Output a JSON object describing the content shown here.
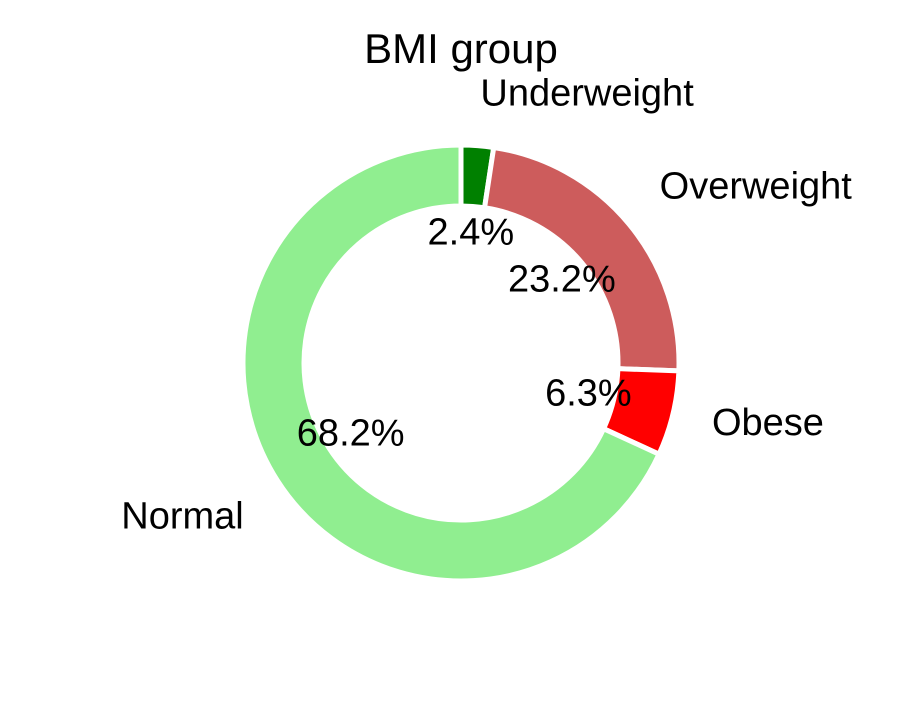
{
  "chart_data": {
    "type": "pie",
    "variant": "donut",
    "title": "BMI group",
    "slices": [
      {
        "label": "Underweight",
        "value": 2.4,
        "value_label": "2.4%",
        "color": "#008000"
      },
      {
        "label": "Overweight",
        "value": 23.2,
        "value_label": "23.2%",
        "color": "#cd5c5c"
      },
      {
        "label": "Obese",
        "value": 6.3,
        "value_label": "6.3%",
        "color": "#ff0000"
      },
      {
        "label": "Normal",
        "value": 68.2,
        "value_label": "68.2%",
        "color": "#90ee90"
      }
    ],
    "start_angle_deg": 90,
    "direction": "clockwise",
    "legend": "none"
  }
}
